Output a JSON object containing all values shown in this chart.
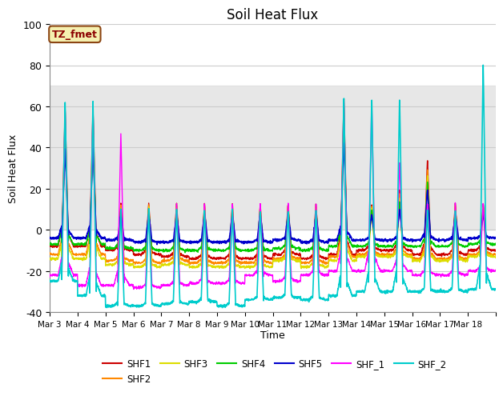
{
  "title": "Soil Heat Flux",
  "xlabel": "Time",
  "ylabel": "Soil Heat Flux",
  "ylim": [
    -40,
    100
  ],
  "annotation_text": "TZ_fmet",
  "annotation_color": "#8B0000",
  "annotation_bg": "#F5F0B0",
  "annotation_ec": "#8B4513",
  "background_color": "#ffffff",
  "plot_bg_color": "#ffffff",
  "shaded_band": [
    0,
    70
  ],
  "shaded_band_color": "#d8d8d8",
  "grid_color": "#cccccc",
  "series_order": [
    "SHF1",
    "SHF2",
    "SHF3",
    "SHF4",
    "SHF5",
    "SHF_1",
    "SHF_2"
  ],
  "series": {
    "SHF1": {
      "color": "#cc0000",
      "lw": 1.0
    },
    "SHF2": {
      "color": "#ff8800",
      "lw": 1.0
    },
    "SHF3": {
      "color": "#dddd00",
      "lw": 1.0
    },
    "SHF4": {
      "color": "#00cc00",
      "lw": 1.0
    },
    "SHF5": {
      "color": "#0000cc",
      "lw": 1.2
    },
    "SHF_1": {
      "color": "#ff00ff",
      "lw": 1.0
    },
    "SHF_2": {
      "color": "#00cccc",
      "lw": 1.2
    }
  },
  "xtick_labels": [
    "Mar 3",
    "Mar 4",
    "Mar 5",
    "Mar 6",
    "Mar 7",
    "Mar 8",
    "Mar 9",
    "Mar 10",
    "Mar 11",
    "Mar 12",
    "Mar 13",
    "Mar 14",
    "Mar 15",
    "Mar 16",
    "Mar 17",
    "Mar 18"
  ],
  "ytick_labels": [
    -40,
    -20,
    0,
    20,
    40,
    60,
    80,
    100
  ],
  "n_days": 16,
  "pts_per_day": 144
}
